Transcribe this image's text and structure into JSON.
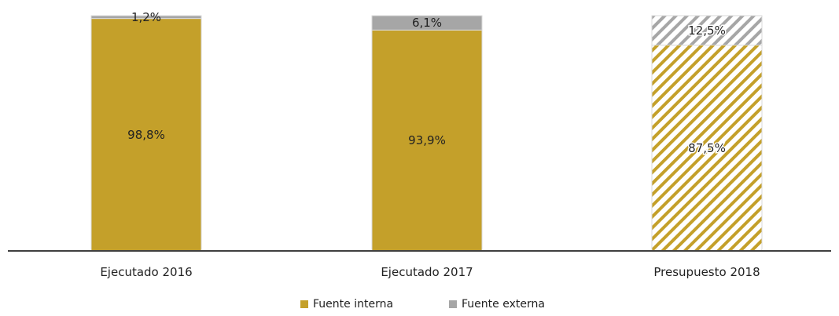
{
  "chart_data": {
    "type": "bar",
    "stacked": true,
    "percent_stacked": true,
    "categories": [
      "Ejecutado 2016",
      "Ejecutado 2017",
      "Presupuesto 2018"
    ],
    "series": [
      {
        "name": "Fuente interna",
        "values": [
          98.8,
          93.9,
          87.5
        ],
        "labels": [
          "98,8%",
          "93,9%",
          "87,5%"
        ],
        "color": "#C4A02A"
      },
      {
        "name": "Fuente externa",
        "values": [
          1.2,
          6.1,
          12.5
        ],
        "labels": [
          "1,2%",
          "6,1%",
          "12,5%"
        ],
        "color": "#A6A6A6"
      }
    ],
    "hatched_categories": [
      "Presupuesto 2018"
    ],
    "ylim": [
      0,
      100
    ],
    "title": "",
    "xlabel": "",
    "ylabel": "",
    "grid": false,
    "legend": {
      "position": "bottom",
      "entries": [
        "Fuente interna",
        "Fuente externa"
      ]
    },
    "colors": {
      "axis": "#404040",
      "bar_border": "#D9D9D9",
      "text": "#222222"
    }
  }
}
